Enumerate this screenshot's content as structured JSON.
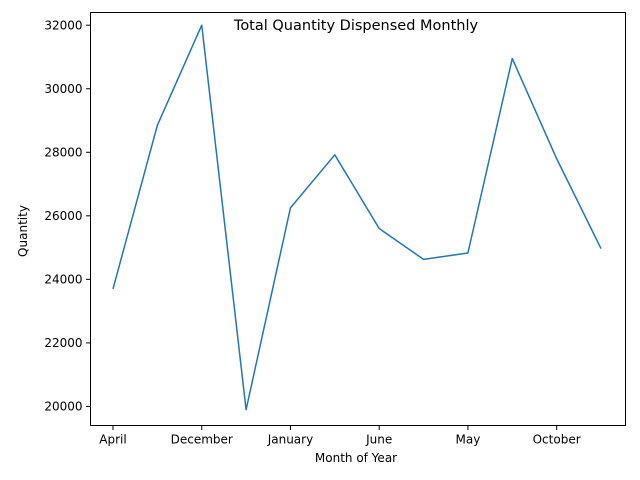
{
  "chart_data": {
    "type": "line",
    "title": "Total Quantity Dispensed Monthly",
    "xlabel": "Month of Year",
    "ylabel": "Quantity",
    "ylim": [
      19400,
      32400
    ],
    "yticks": [
      20000,
      22000,
      24000,
      26000,
      28000,
      30000,
      32000
    ],
    "xtick_labels": [
      "April",
      "December",
      "January",
      "June",
      "May",
      "October"
    ],
    "xtick_indices": [
      0,
      2,
      4,
      6,
      8,
      10
    ],
    "grid": false,
    "legend": "none",
    "series": [
      {
        "color": "#1f77b4",
        "values": [
          23700,
          28850,
          32000,
          19900,
          26250,
          27920,
          25600,
          24630,
          24830,
          30950,
          27800,
          24970
        ]
      }
    ]
  }
}
